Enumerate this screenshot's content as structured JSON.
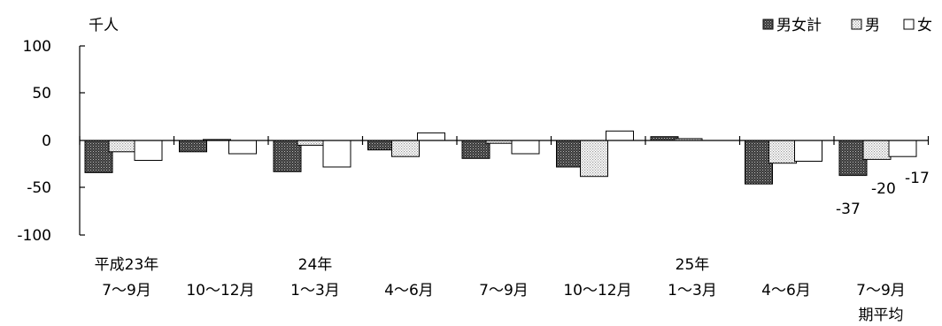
{
  "chart_data": {
    "type": "bar",
    "ylabel": "千人",
    "ylim": [
      -100,
      100
    ],
    "yticks": [
      "100",
      "50",
      "0",
      "-50",
      "-100"
    ],
    "categories": [
      [
        "平成23年",
        "7～9月"
      ],
      [
        "",
        "10～12月"
      ],
      [
        "24年",
        "1～3月"
      ],
      [
        "",
        "4～6月"
      ],
      [
        "",
        "7～9月"
      ],
      [
        "",
        "10～12月"
      ],
      [
        "25年",
        "1～3月"
      ],
      [
        "",
        "4～6月"
      ],
      [
        "",
        "7～9月",
        "期平均"
      ]
    ],
    "series": [
      {
        "name": "男女計",
        "pattern": "dense-dots",
        "values": [
          -34,
          -12,
          -33,
          -10,
          -19,
          -28,
          4,
          -46,
          -37
        ]
      },
      {
        "name": "男",
        "pattern": "light-dots",
        "values": [
          -12,
          1,
          -5,
          -17,
          -3,
          -38,
          2,
          -24,
          -20
        ]
      },
      {
        "name": "女",
        "pattern": "white",
        "values": [
          -21,
          -14,
          -28,
          8,
          -14,
          10,
          0,
          -22,
          -17
        ]
      }
    ],
    "data_labels": [
      "-37",
      "-20",
      "-17"
    ],
    "legend": {
      "position": "top-right"
    }
  }
}
